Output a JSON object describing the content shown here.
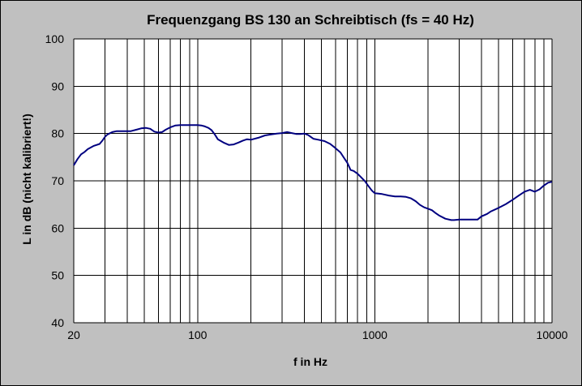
{
  "chart_data": {
    "type": "line",
    "title": "Frequenzgang BS 130 an Schreibtisch (fs = 40 Hz)",
    "xlabel": "f in Hz",
    "ylabel": "L in dB (nicht kalibriert!)",
    "x_scale": "log",
    "xlim": [
      20,
      10000
    ],
    "ylim": [
      40,
      100
    ],
    "x_ticks": [
      20,
      100,
      1000,
      10000
    ],
    "x_tick_labels": [
      "20",
      "100",
      "1000",
      "10000"
    ],
    "y_ticks": [
      40,
      50,
      60,
      70,
      80,
      90,
      100
    ],
    "y_tick_labels": [
      "40",
      "50",
      "60",
      "70",
      "80",
      "90",
      "100"
    ],
    "grid": true,
    "plot_background": "#ffffff",
    "page_background": "#c0c0c0",
    "grid_color": "#000000",
    "line_color": "#000080",
    "series": [
      {
        "x": [
          20,
          21,
          22,
          23,
          24,
          26,
          28,
          29,
          30,
          31,
          33,
          35,
          38,
          42,
          45,
          48,
          51,
          54,
          57,
          60,
          63,
          66,
          70,
          75,
          80,
          85,
          90,
          95,
          100,
          105,
          110,
          115,
          120,
          125,
          130,
          140,
          150,
          160,
          170,
          180,
          190,
          200,
          220,
          240,
          260,
          280,
          300,
          320,
          340,
          360,
          380,
          400,
          420,
          450,
          480,
          520,
          560,
          600,
          640,
          680,
          700,
          730,
          760,
          800,
          840,
          880,
          920,
          960,
          1000,
          1050,
          1100,
          1200,
          1300,
          1400,
          1500,
          1600,
          1700,
          1800,
          1900,
          2000,
          2100,
          2200,
          2300,
          2500,
          2700,
          2800,
          3000,
          3300,
          3500,
          3800,
          4000,
          4300,
          4500,
          5000,
          5500,
          6000,
          6500,
          7000,
          7500,
          8000,
          8500,
          9000,
          9500,
          10000
        ],
        "y": [
          73.3,
          74.6,
          75.6,
          76.1,
          76.7,
          77.4,
          77.8,
          78.5,
          79.3,
          79.8,
          80.3,
          80.5,
          80.5,
          80.5,
          80.8,
          81.1,
          81.2,
          81.0,
          80.4,
          80.2,
          80.3,
          80.8,
          81.3,
          81.7,
          81.8,
          81.8,
          81.8,
          81.8,
          81.8,
          81.7,
          81.5,
          81.2,
          80.7,
          79.8,
          78.8,
          78.1,
          77.6,
          77.7,
          78.1,
          78.5,
          78.8,
          78.7,
          79.1,
          79.6,
          79.8,
          80.0,
          80.1,
          80.3,
          80.1,
          79.9,
          79.9,
          80.0,
          79.7,
          78.9,
          78.7,
          78.4,
          77.8,
          76.9,
          76.0,
          74.5,
          73.8,
          72.3,
          72.1,
          71.5,
          70.7,
          69.9,
          68.9,
          68.0,
          67.4,
          67.3,
          67.2,
          66.9,
          66.7,
          66.7,
          66.6,
          66.3,
          65.7,
          64.9,
          64.4,
          64.1,
          63.8,
          63.2,
          62.7,
          62.0,
          61.7,
          61.7,
          61.8,
          61.8,
          61.8,
          61.8,
          62.5,
          63.0,
          63.5,
          64.3,
          65.1,
          66.0,
          66.9,
          67.7,
          68.1,
          67.7,
          68.2,
          69.0,
          69.6,
          69.8
        ]
      }
    ]
  }
}
